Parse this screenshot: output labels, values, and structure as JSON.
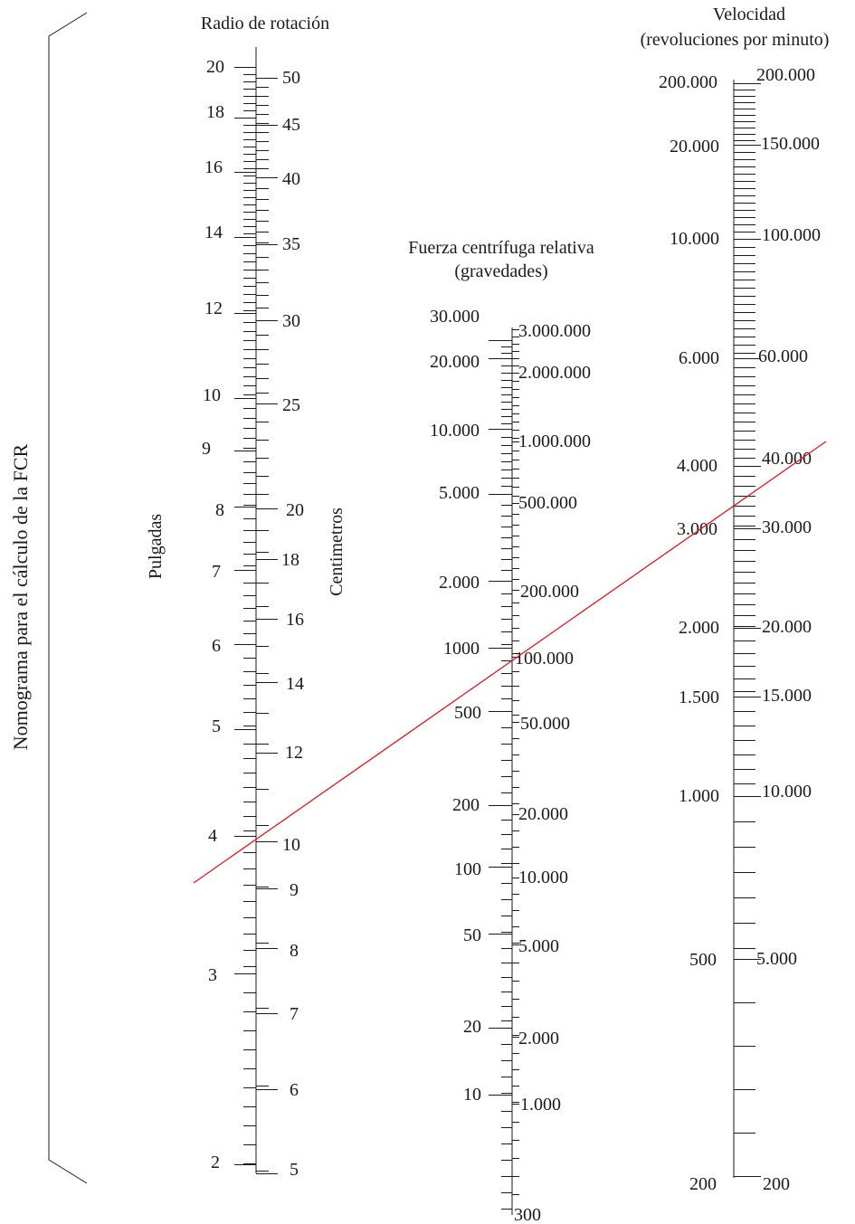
{
  "side_title": "Nomograma para el cálculo de la FCR",
  "accent_color": "#e8141c",
  "radius": {
    "title": "Radio de rotación",
    "left_unit": "Pulgadas",
    "right_unit": "Centimetros",
    "left_labels": [
      "20",
      "18",
      "16",
      "14",
      "12",
      "10",
      "9",
      "8",
      "7",
      "6",
      "5",
      "4",
      "3",
      "2"
    ],
    "right_labels": [
      "50",
      "45",
      "40",
      "35",
      "30",
      "25",
      "20",
      "18",
      "16",
      "14",
      "12",
      "10",
      "9",
      "8",
      "7",
      "6",
      "5"
    ]
  },
  "rcf": {
    "title_line1": "Fuerza centrífuga relativa",
    "title_line2": "(gravedades)",
    "left_labels": [
      "30.000",
      "20.000",
      "10.000",
      "5.000",
      "2.000",
      "1000",
      "500",
      "200",
      "100",
      "50",
      "20",
      "10"
    ],
    "right_labels": [
      "3.000.000",
      "2.000.000",
      "1.000.000",
      "500.000",
      "200.000",
      "100.000",
      "50.000",
      "20.000",
      "10.000",
      "5.000",
      "2.000",
      "1.000",
      "300"
    ]
  },
  "speed": {
    "title_line1": "Velocidad",
    "title_line2": "(revoluciones por minuto)",
    "left_labels": [
      "200.000",
      "20.000",
      "10.000",
      "6.000",
      "4.000",
      "3.000",
      "2.000",
      "1.500",
      "1.000",
      "500",
      "200"
    ],
    "right_labels": [
      "200.000",
      "150.000",
      "100.000",
      "60.000",
      "40.000",
      "30.000",
      "20.000",
      "15.000",
      "10.000",
      "5.000",
      "200"
    ]
  }
}
